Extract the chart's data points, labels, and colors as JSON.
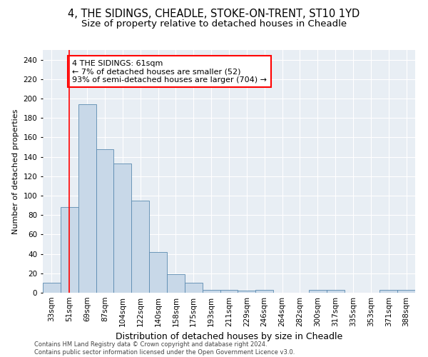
{
  "title1": "4, THE SIDINGS, CHEADLE, STOKE-ON-TRENT, ST10 1YD",
  "title2": "Size of property relative to detached houses in Cheadle",
  "xlabel": "Distribution of detached houses by size in Cheadle",
  "ylabel": "Number of detached properties",
  "categories": [
    "33sqm",
    "51sqm",
    "69sqm",
    "87sqm",
    "104sqm",
    "122sqm",
    "140sqm",
    "158sqm",
    "175sqm",
    "193sqm",
    "211sqm",
    "229sqm",
    "246sqm",
    "264sqm",
    "282sqm",
    "300sqm",
    "317sqm",
    "335sqm",
    "353sqm",
    "371sqm",
    "388sqm"
  ],
  "values": [
    10,
    88,
    194,
    148,
    133,
    95,
    42,
    19,
    10,
    3,
    3,
    2,
    3,
    0,
    0,
    3,
    3,
    0,
    0,
    3,
    3
  ],
  "bar_color": "#c8d8e8",
  "bar_edge_color": "#5a8ab0",
  "vline_x": 1.0,
  "vline_color": "red",
  "annotation_text": "4 THE SIDINGS: 61sqm\n← 7% of detached houses are smaller (52)\n93% of semi-detached houses are larger (704) →",
  "annotation_box_color": "white",
  "annotation_box_edge_color": "red",
  "ylim": [
    0,
    250
  ],
  "yticks": [
    0,
    20,
    40,
    60,
    80,
    100,
    120,
    140,
    160,
    180,
    200,
    220,
    240
  ],
  "background_color": "#e8eef4",
  "footer_text": "Contains HM Land Registry data © Crown copyright and database right 2024.\nContains public sector information licensed under the Open Government Licence v3.0.",
  "title_fontsize": 10.5,
  "subtitle_fontsize": 9.5,
  "xlabel_fontsize": 9,
  "ylabel_fontsize": 8,
  "tick_fontsize": 7.5,
  "annotation_fontsize": 8,
  "footer_fontsize": 6
}
